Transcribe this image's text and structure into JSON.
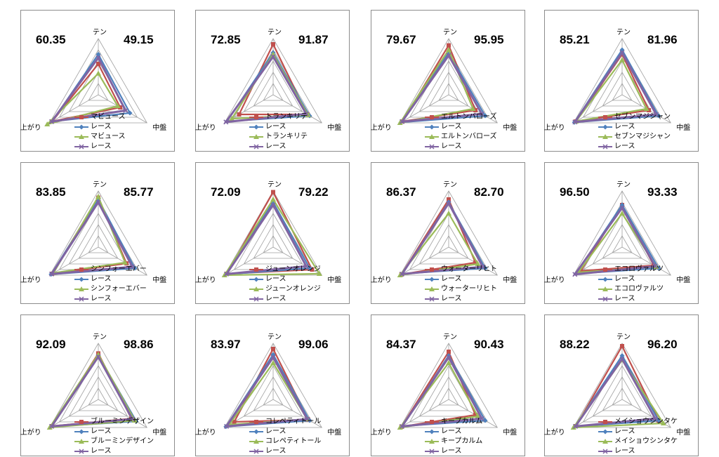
{
  "colors": {
    "horse": "#c0504d",
    "race": "#4f81bd",
    "horse2": "#9bbb59",
    "race2": "#8064a2",
    "grid": "#a0a0a0"
  },
  "axes": [
    "テン",
    "中盤",
    "上がり"
  ],
  "chart_data": [
    {
      "type": "radar",
      "score_left": "60.35",
      "score_right": "49.15",
      "axes": [
        "テン",
        "中盤",
        "上がり"
      ],
      "series": [
        {
          "name": "マビュース",
          "values": [
            55,
            45,
            95
          ]
        },
        {
          "name": "レース",
          "values": [
            72,
            65,
            95
          ]
        },
        {
          "name": "マビュース",
          "values": [
            38,
            40,
            105
          ]
        },
        {
          "name": "レース",
          "values": [
            66,
            56,
            96
          ]
        }
      ]
    },
    {
      "type": "radar",
      "score_left": "72.85",
      "score_right": "91.87",
      "axes": [
        "テン",
        "中盤",
        "上がり"
      ],
      "series": [
        {
          "name": "トランキリテ",
          "values": [
            90,
            70,
            70
          ]
        },
        {
          "name": "レース",
          "values": [
            75,
            75,
            95
          ]
        },
        {
          "name": "トランキリテ",
          "values": [
            72,
            72,
            85
          ]
        },
        {
          "name": "レース",
          "values": [
            68,
            68,
            97
          ]
        }
      ]
    },
    {
      "type": "radar",
      "score_left": "79.67",
      "score_right": "95.95",
      "axes": [
        "テン",
        "中盤",
        "上がり"
      ],
      "series": [
        {
          "name": "エルトンバローズ",
          "values": [
            88,
            55,
            95
          ]
        },
        {
          "name": "レース",
          "values": [
            75,
            75,
            98
          ]
        },
        {
          "name": "エルトンバローズ",
          "values": [
            80,
            50,
            100
          ]
        },
        {
          "name": "レース",
          "values": [
            70,
            68,
            96
          ]
        }
      ]
    },
    {
      "type": "radar",
      "score_left": "85.21",
      "score_right": "81.96",
      "axes": [
        "テン",
        "中盤",
        "上がり"
      ],
      "series": [
        {
          "name": "セブンマジシャン",
          "values": [
            72,
            55,
            95
          ]
        },
        {
          "name": "レース",
          "values": [
            80,
            75,
            98
          ]
        },
        {
          "name": "セブンマジシャン",
          "values": [
            62,
            50,
            95
          ]
        },
        {
          "name": "レース",
          "values": [
            75,
            70,
            97
          ]
        }
      ]
    },
    {
      "type": "radar",
      "score_left": "83.85",
      "score_right": "85.77",
      "axes": [
        "テン",
        "中盤",
        "上がり"
      ],
      "series": [
        {
          "name": "シンフォーエバー",
          "values": [
            88,
            58,
            95
          ]
        },
        {
          "name": "レース",
          "values": [
            85,
            75,
            97
          ]
        },
        {
          "name": "シンフォーエバー",
          "values": [
            90,
            55,
            92
          ]
        },
        {
          "name": "レース",
          "values": [
            80,
            70,
            96
          ]
        }
      ]
    },
    {
      "type": "radar",
      "score_left": "72.09",
      "score_right": "79.22",
      "axes": [
        "テン",
        "中盤",
        "上がり"
      ],
      "series": [
        {
          "name": "ジューンオレンジ",
          "values": [
            98,
            80,
            95
          ]
        },
        {
          "name": "レース",
          "values": [
            80,
            75,
            97
          ]
        },
        {
          "name": "ジューンオレンジ",
          "values": [
            85,
            95,
            100
          ]
        },
        {
          "name": "レース",
          "values": [
            75,
            68,
            96
          ]
        }
      ]
    },
    {
      "type": "radar",
      "score_left": "86.37",
      "score_right": "82.70",
      "axes": [
        "テン",
        "中盤",
        "上がり"
      ],
      "series": [
        {
          "name": "ウォーターリヒト",
          "values": [
            85,
            55,
            97
          ]
        },
        {
          "name": "レース",
          "values": [
            80,
            75,
            95
          ]
        },
        {
          "name": "ウォーターリヒト",
          "values": [
            60,
            60,
            100
          ]
        },
        {
          "name": "レース",
          "values": [
            78,
            70,
            96
          ]
        }
      ]
    },
    {
      "type": "radar",
      "score_left": "96.50",
      "score_right": "93.33",
      "axes": [
        "テン",
        "中盤",
        "上がり"
      ],
      "series": [
        {
          "name": "エコロヴァルツ",
          "values": [
            75,
            65,
            85
          ]
        },
        {
          "name": "レース",
          "values": [
            75,
            75,
            95
          ]
        },
        {
          "name": "エコロヴァルツ",
          "values": [
            60,
            70,
            90
          ]
        },
        {
          "name": "レース",
          "values": [
            70,
            68,
            97
          ]
        }
      ]
    },
    {
      "type": "radar",
      "score_left": "92.09",
      "score_right": "98.86",
      "axes": [
        "テン",
        "中盤",
        "上がり"
      ],
      "series": [
        {
          "name": "ブルーミンデザイン",
          "values": [
            82,
            68,
            95
          ]
        },
        {
          "name": "レース",
          "values": [
            78,
            78,
            97
          ]
        },
        {
          "name": "ブルーミンデザイン",
          "values": [
            80,
            75,
            100
          ]
        },
        {
          "name": "レース",
          "values": [
            76,
            70,
            96
          ]
        }
      ]
    },
    {
      "type": "radar",
      "score_left": "83.97",
      "score_right": "99.06",
      "axes": [
        "テン",
        "中盤",
        "上がり"
      ],
      "series": [
        {
          "name": "コレペティトール",
          "values": [
            90,
            72,
            80
          ]
        },
        {
          "name": "レース",
          "values": [
            80,
            75,
            97
          ]
        },
        {
          "name": "コレペティトール",
          "values": [
            65,
            70,
            90
          ]
        },
        {
          "name": "レース",
          "values": [
            75,
            70,
            96
          ]
        }
      ]
    },
    {
      "type": "radar",
      "score_left": "84.37",
      "score_right": "90.43",
      "axes": [
        "テン",
        "中盤",
        "上がり"
      ],
      "series": [
        {
          "name": "キープカルム",
          "values": [
            85,
            55,
            97
          ]
        },
        {
          "name": "レース",
          "values": [
            78,
            75,
            95
          ]
        },
        {
          "name": "キープカルム",
          "values": [
            65,
            60,
            100
          ]
        },
        {
          "name": "レース",
          "values": [
            75,
            68,
            96
          ]
        }
      ]
    },
    {
      "type": "radar",
      "score_left": "88.22",
      "score_right": "96.20",
      "axes": [
        "テン",
        "中盤",
        "上がり"
      ],
      "series": [
        {
          "name": "メイショウシンタケ",
          "values": [
            95,
            75,
            95
          ]
        },
        {
          "name": "レース",
          "values": [
            78,
            75,
            97
          ]
        },
        {
          "name": "メイショウシンタケ",
          "values": [
            70,
            85,
            100
          ]
        },
        {
          "name": "レース",
          "values": [
            72,
            68,
            96
          ]
        }
      ]
    }
  ]
}
